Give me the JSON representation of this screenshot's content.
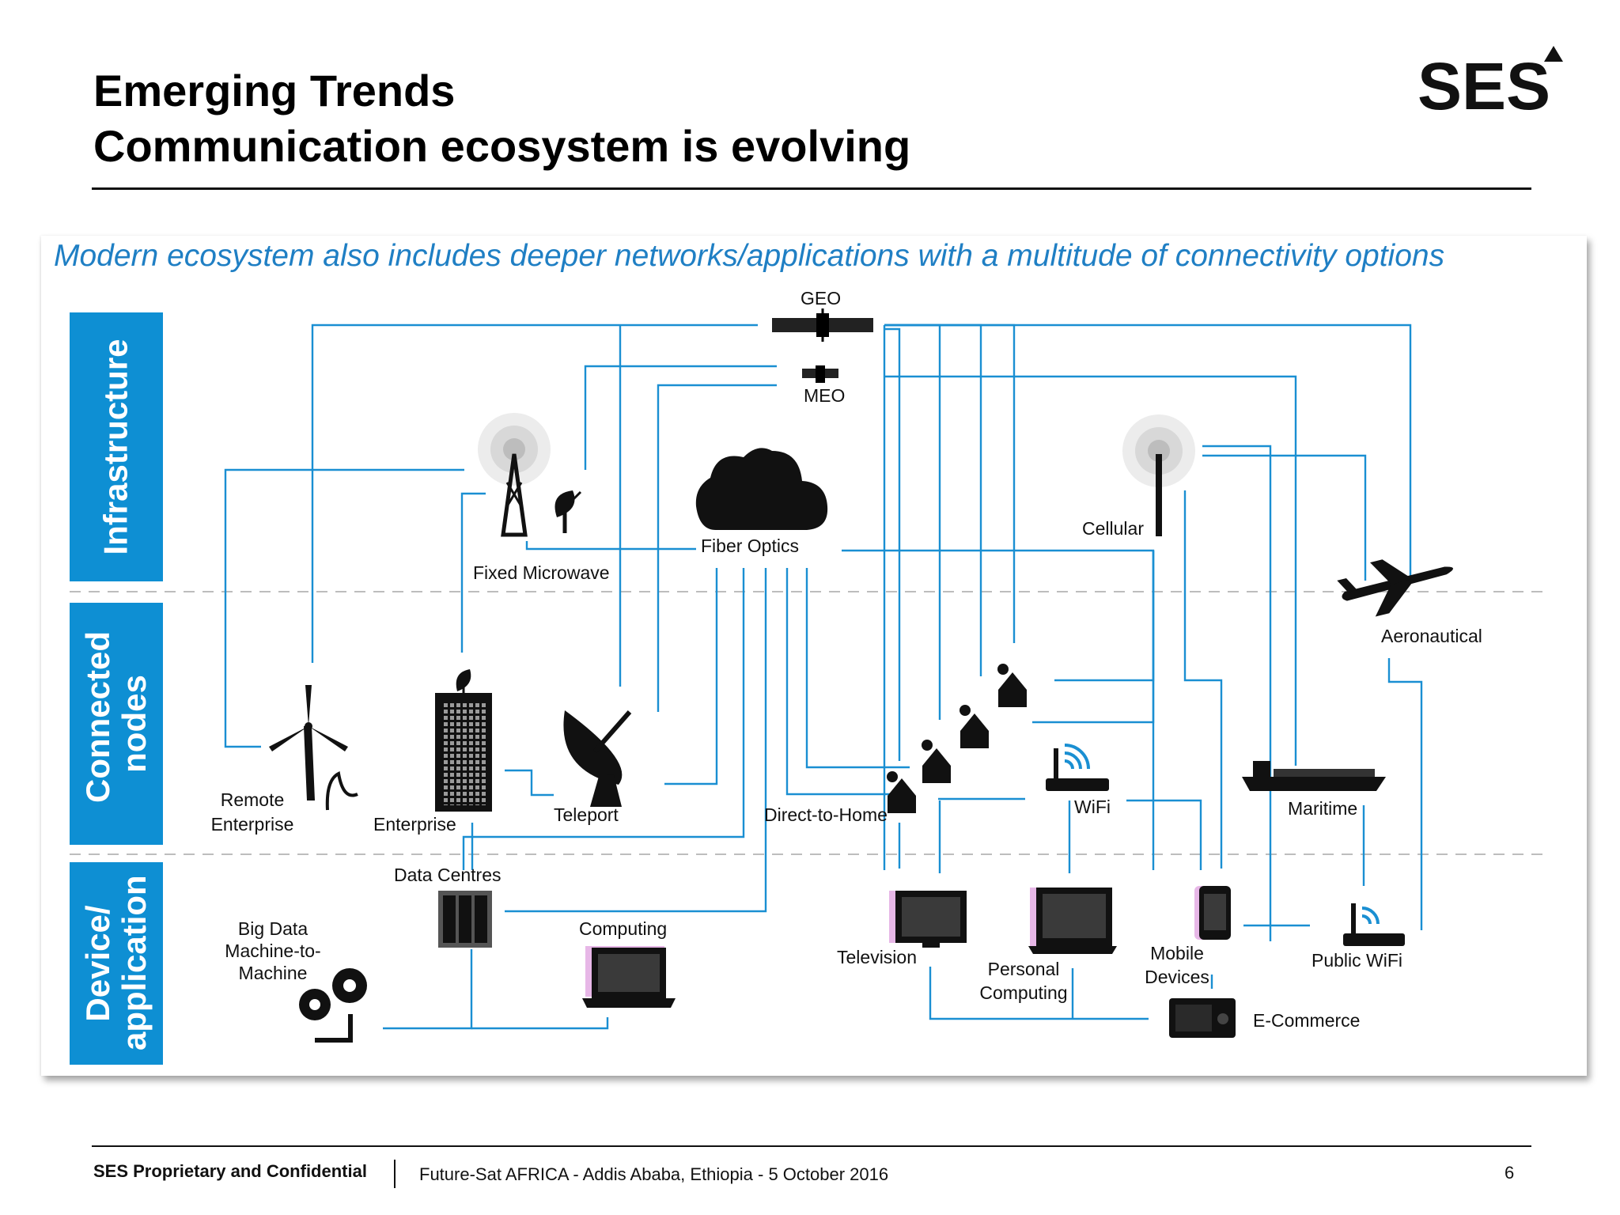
{
  "header": {
    "title_line1": "Emerging Trends",
    "title_line2": "Communication ecosystem is evolving",
    "logo_text": "SES"
  },
  "panel": {
    "subtitle": "Modern ecosystem also includes deeper networks/applications with a multitude of connectivity options",
    "bands": [
      "Infrastructure",
      "Connected nodes",
      "Device/ application"
    ]
  },
  "nodes": {
    "geo": "GEO",
    "meo": "MEO",
    "fixed_microwave": "Fixed Microwave",
    "fiber_optics": "Fiber Optics",
    "cellular": "Cellular",
    "aeronautical": "Aeronautical",
    "remote_enterprise": "Remote Enterprise",
    "enterprise": "Enterprise",
    "teleport": "Teleport",
    "direct_to_home": "Direct-to-Home",
    "wifi": "WiFi",
    "maritime": "Maritime",
    "data_centres": "Data Centres",
    "big_data": "Big Data Machine-to-Machine",
    "computing": "Computing",
    "television": "Television",
    "personal_computing": "Personal Computing",
    "mobile_devices": "Mobile Devices",
    "public_wifi": "Public WiFi",
    "e_commerce": "E-Commerce"
  },
  "colors": {
    "link": "#1a8fd2",
    "band": "#0e8fd3",
    "subtitle": "#1f7fc4"
  },
  "icons": [
    "satellite-icon",
    "radio-tower-icon",
    "satellite-dish-icon",
    "cloud-icon",
    "cell-antenna-icon",
    "airplane-icon",
    "wind-turbine-icon",
    "office-building-icon",
    "house-icon",
    "wifi-router-icon",
    "ship-icon",
    "server-rack-icon",
    "gears-icon",
    "laptop-icon",
    "television-icon",
    "smartphone-icon",
    "payment-terminal-icon"
  ],
  "footer": {
    "confidential": "SES Proprietary and Confidential",
    "event": "Future-Sat AFRICA - Addis Ababa, Ethiopia - 5 October 2016",
    "page_number": "6"
  }
}
